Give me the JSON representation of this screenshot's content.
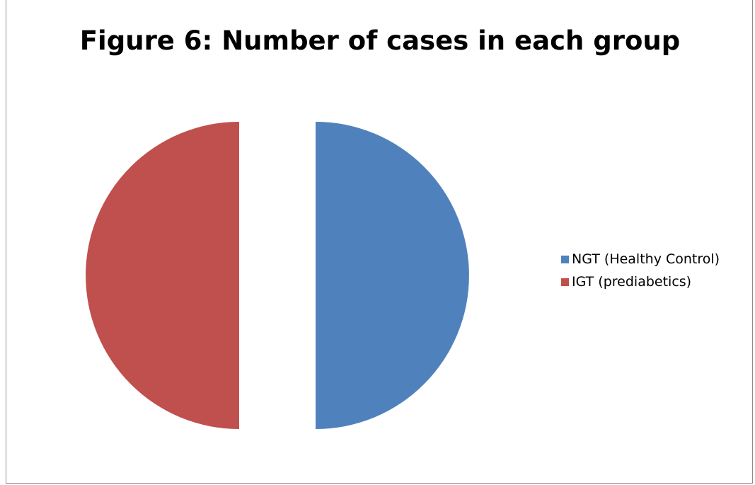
{
  "chart_data": {
    "type": "pie",
    "title": "Figure 6: Number of cases in each group",
    "exploded": true,
    "legend_position": "right",
    "slices": [
      {
        "label": "NGT (Healthy Control)",
        "value": 50,
        "color": "#4F81BD"
      },
      {
        "label": "IGT (prediabetics)",
        "value": 50,
        "color": "#C0504D"
      }
    ]
  }
}
